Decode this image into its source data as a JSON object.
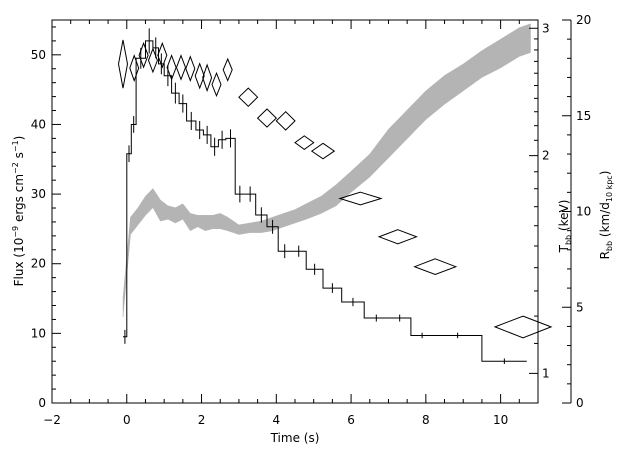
{
  "chart_data": {
    "type": "scatter",
    "title": "",
    "xlabel": "Time (s)",
    "ylabel": "Flux (10⁻⁹ ergs cm⁻² s⁻¹)",
    "y_right_1_label": "T_bb (keV)",
    "y_right_2_label": "R_bb (km/d_10 kpc)",
    "x_range": [
      -2,
      11
    ],
    "y_range": [
      0,
      55
    ],
    "y_right_1_scale": "log",
    "y_right_1_range": [
      0.91,
      3.08
    ],
    "y_right_2_range": [
      0,
      20
    ],
    "grid": false,
    "x_ticks": [
      -2,
      0,
      2,
      4,
      6,
      8,
      10
    ],
    "y_ticks": [
      0,
      10,
      20,
      30,
      40,
      50
    ],
    "y_right_1_ticks": [
      1,
      2,
      3
    ],
    "y_right_2_ticks": [
      0,
      5,
      10,
      15,
      20
    ],
    "series": [
      {
        "kind": "flux_step_histogram",
        "x_edges": [
          -0.1,
          0.0,
          0.12,
          0.25,
          0.5,
          0.7,
          0.85,
          1.0,
          1.2,
          1.4,
          1.6,
          1.85,
          2.05,
          2.25,
          2.45,
          2.65,
          2.9,
          3.15,
          3.45,
          3.75,
          4.05,
          4.4,
          4.8,
          5.25,
          5.75,
          6.35,
          7.0,
          7.6,
          8.2,
          9.5,
          10.7
        ],
        "values": [
          9.5,
          35.8,
          40.0,
          49.5,
          52.0,
          51.0,
          48.7,
          47.0,
          44.5,
          43.0,
          40.5,
          39.2,
          38.5,
          36.8,
          37.8,
          38.0,
          30.0,
          30.0,
          27.0,
          25.3,
          21.8,
          21.8,
          19.2,
          16.5,
          14.5,
          12.2,
          12.2,
          9.7,
          9.7,
          6.0
        ],
        "errors": [
          1.0,
          1.2,
          1.2,
          1.5,
          1.8,
          1.5,
          1.5,
          1.5,
          1.5,
          1.3,
          1.3,
          1.3,
          1.3,
          1.3,
          1.3,
          1.3,
          1.2,
          1.1,
          1.1,
          1.0,
          1.0,
          0.8,
          0.8,
          0.7,
          0.6,
          0.5,
          0.5,
          0.4,
          0.4,
          0.4
        ]
      },
      {
        "kind": "temperature_diamonds",
        "axis": "T_bb (keV)",
        "points": [
          {
            "t": -0.1,
            "half_width": 0.12,
            "T_lo": 2.48,
            "T_hi": 2.89
          },
          {
            "t": 0.2,
            "half_width": 0.12,
            "T_lo": 2.54,
            "T_hi": 2.75
          },
          {
            "t": 0.45,
            "half_width": 0.12,
            "T_lo": 2.65,
            "T_hi": 2.86
          },
          {
            "t": 0.7,
            "half_width": 0.12,
            "T_lo": 2.61,
            "T_hi": 2.81
          },
          {
            "t": 0.95,
            "half_width": 0.12,
            "T_lo": 2.65,
            "T_hi": 2.86
          },
          {
            "t": 1.2,
            "half_width": 0.12,
            "T_lo": 2.55,
            "T_hi": 2.75
          },
          {
            "t": 1.45,
            "half_width": 0.12,
            "T_lo": 2.55,
            "T_hi": 2.75
          },
          {
            "t": 1.7,
            "half_width": 0.12,
            "T_lo": 2.54,
            "T_hi": 2.74
          },
          {
            "t": 1.95,
            "half_width": 0.12,
            "T_lo": 2.48,
            "T_hi": 2.68
          },
          {
            "t": 2.15,
            "half_width": 0.12,
            "T_lo": 2.46,
            "T_hi": 2.67
          },
          {
            "t": 2.4,
            "half_width": 0.12,
            "T_lo": 2.42,
            "T_hi": 2.6
          },
          {
            "t": 2.7,
            "half_width": 0.12,
            "T_lo": 2.54,
            "T_hi": 2.72
          },
          {
            "t": 3.25,
            "half_width": 0.25,
            "T_lo": 2.34,
            "T_hi": 2.48
          },
          {
            "t": 3.75,
            "half_width": 0.25,
            "T_lo": 2.19,
            "T_hi": 2.32
          },
          {
            "t": 4.25,
            "half_width": 0.25,
            "T_lo": 2.17,
            "T_hi": 2.3
          },
          {
            "t": 4.75,
            "half_width": 0.25,
            "T_lo": 2.04,
            "T_hi": 2.13
          },
          {
            "t": 5.25,
            "half_width": 0.3,
            "T_lo": 1.98,
            "T_hi": 2.08
          },
          {
            "t": 6.25,
            "half_width": 0.55,
            "T_lo": 1.71,
            "T_hi": 1.78
          },
          {
            "t": 7.25,
            "half_width": 0.5,
            "T_lo": 1.51,
            "T_hi": 1.58
          },
          {
            "t": 8.25,
            "half_width": 0.55,
            "T_lo": 1.37,
            "T_hi": 1.44
          },
          {
            "t": 10.6,
            "half_width": 0.75,
            "T_lo": 1.12,
            "T_hi": 1.2
          }
        ]
      },
      {
        "kind": "radius_band",
        "axis": "R_bb (km/d_10 kpc)",
        "t": [
          -0.1,
          0.1,
          0.3,
          0.5,
          0.7,
          0.9,
          1.1,
          1.3,
          1.5,
          1.7,
          1.9,
          2.1,
          2.3,
          2.5,
          2.7,
          3.0,
          3.3,
          3.6,
          3.9,
          4.2,
          4.5,
          4.8,
          5.2,
          5.6,
          6.0,
          6.5,
          7.0,
          7.5,
          8.0,
          8.5,
          9.0,
          9.5,
          10.0,
          10.5,
          10.8
        ],
        "lower": [
          4.5,
          8.8,
          9.3,
          9.8,
          10.2,
          9.5,
          9.6,
          9.4,
          9.6,
          9.0,
          9.2,
          9.0,
          9.1,
          9.1,
          9.0,
          8.8,
          8.9,
          8.9,
          9.0,
          9.2,
          9.4,
          9.6,
          9.9,
          10.3,
          11.0,
          11.8,
          12.8,
          13.8,
          14.8,
          15.6,
          16.3,
          17.0,
          17.5,
          18.1,
          18.3
        ],
        "upper": [
          5.5,
          9.7,
          10.2,
          10.8,
          11.2,
          10.6,
          10.3,
          10.2,
          10.4,
          9.9,
          9.8,
          9.8,
          9.8,
          9.9,
          9.7,
          9.3,
          9.4,
          9.5,
          9.7,
          9.9,
          10.1,
          10.4,
          10.8,
          11.4,
          12.1,
          13.0,
          14.3,
          15.3,
          16.3,
          17.1,
          17.7,
          18.4,
          19.0,
          19.6,
          19.8
        ]
      }
    ]
  }
}
